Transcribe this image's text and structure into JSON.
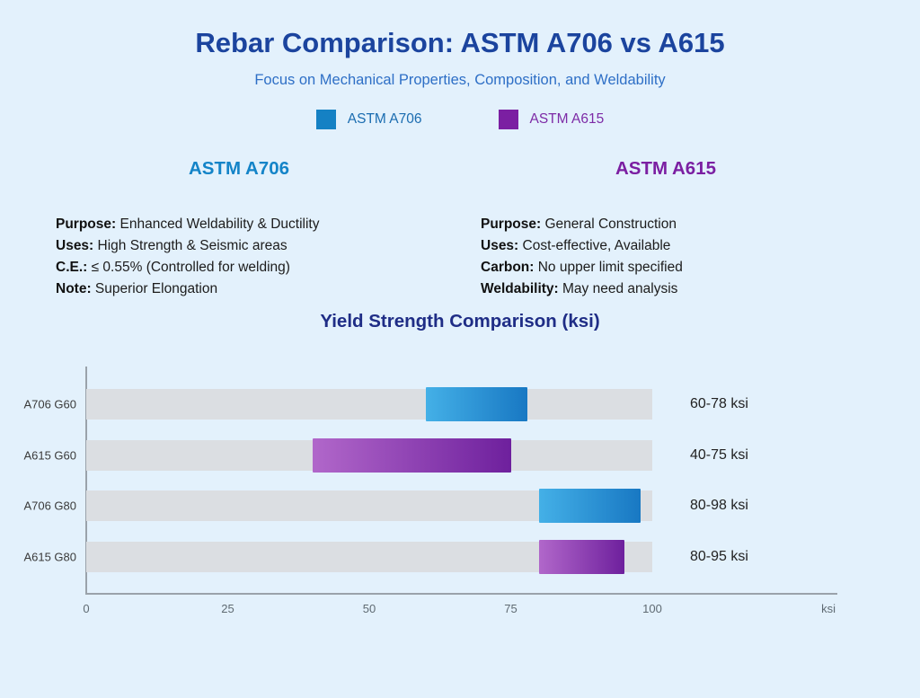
{
  "header": {
    "title": "Rebar Comparison: ASTM A706 vs A615",
    "subtitle": "Focus on Mechanical Properties, Composition, and Weldability"
  },
  "legend": [
    {
      "label": "ASTM A706",
      "swatch_color": "#1581c4",
      "text_color": "#1a6cb0"
    },
    {
      "label": "ASTM A615",
      "swatch_color": "#7b1fa2",
      "text_color": "#7d2ba6"
    }
  ],
  "columns": [
    {
      "header": "ASTM A706",
      "header_color": "#1484c8",
      "specs": [
        {
          "label": "Purpose:",
          "value": "Enhanced Weldability & Ductility"
        },
        {
          "label": "Uses:",
          "value": "High Strength & Seismic areas"
        },
        {
          "label": "C.E.:",
          "value": "≤ 0.55% (Controlled for welding)"
        },
        {
          "label": "Note:",
          "value": "Superior Elongation"
        }
      ]
    },
    {
      "header": "ASTM A615",
      "header_color": "#7b1fa2",
      "specs": [
        {
          "label": "Purpose:",
          "value": "General Construction"
        },
        {
          "label": "Uses:",
          "value": "Cost-effective, Available"
        },
        {
          "label": "Carbon:",
          "value": "No upper limit specified"
        },
        {
          "label": "Weldability:",
          "value": "May need analysis"
        }
      ]
    }
  ],
  "chart_data": {
    "type": "bar",
    "orientation": "horizontal-range",
    "title": "Yield Strength Comparison (ksi)",
    "categories": [
      "A706 G60",
      "A615 G60",
      "A706 G80",
      "A615 G80"
    ],
    "bars": [
      {
        "category": "A706 G60",
        "series": "ASTM A706",
        "min": 60,
        "max": 78,
        "label": "60-78 ksi"
      },
      {
        "category": "A615 G60",
        "series": "ASTM A615",
        "min": 40,
        "max": 75,
        "label": "40-75 ksi"
      },
      {
        "category": "A706 G80",
        "series": "ASTM A706",
        "min": 80,
        "max": 98,
        "label": "80-98 ksi"
      },
      {
        "category": "A615 G80",
        "series": "ASTM A615",
        "min": 80,
        "max": 95,
        "label": "80-95 ksi"
      }
    ],
    "xlim": [
      0,
      100
    ],
    "xticks": [
      0,
      25,
      50,
      75,
      100
    ],
    "x_unit": "ksi",
    "track_range": [
      0,
      100
    ],
    "grid": false,
    "legend_position": "top",
    "colors": {
      "a706_gradient": [
        "#44b0e7",
        "#1878c3"
      ],
      "a615_gradient": [
        "#b167ca",
        "#6e209d"
      ],
      "track": "#dbdee2",
      "axis": "#9aa2aa"
    }
  }
}
